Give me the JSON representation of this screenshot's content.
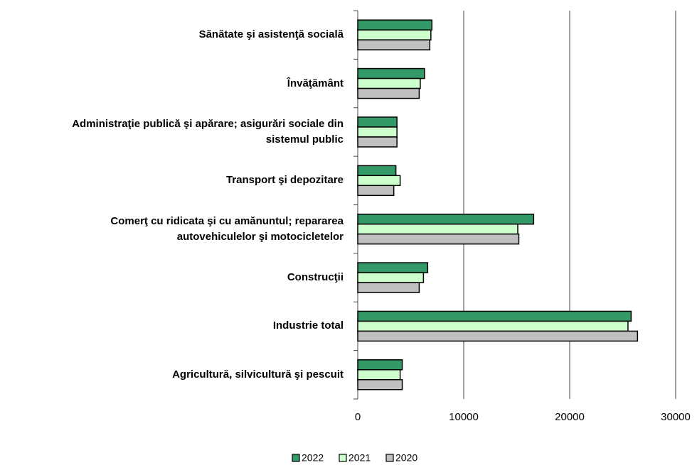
{
  "chart_data": {
    "type": "bar",
    "orientation": "horizontal",
    "categories": [
      "Sănătate şi asistenţă socială",
      "Învăţământ",
      "Administraţie publică şi apărare; asigurări sociale din\nsistemul public",
      "Transport şi depozitare",
      "Comerţ cu ridicata şi cu amănuntul; repararea\nautovehiculelor şi motocicletelor",
      "Construcţii",
      "Industrie total",
      "Agricultură, silvicultură şi pescuit"
    ],
    "series": [
      {
        "name": "2022",
        "color": "#339966",
        "values": [
          7000,
          6300,
          3700,
          3600,
          16600,
          6600,
          25800,
          4200
        ]
      },
      {
        "name": "2021",
        "color": "#ccffcc",
        "values": [
          6900,
          5900,
          3700,
          4000,
          15100,
          6200,
          25500,
          4000
        ]
      },
      {
        "name": "2020",
        "color": "#c0c0c0",
        "values": [
          6800,
          5800,
          3700,
          3400,
          15200,
          5800,
          26400,
          4200
        ]
      }
    ],
    "xlim": [
      0,
      30000
    ],
    "xticks": [
      0,
      10000,
      20000,
      30000
    ],
    "grid": true,
    "legend": "bottom"
  }
}
